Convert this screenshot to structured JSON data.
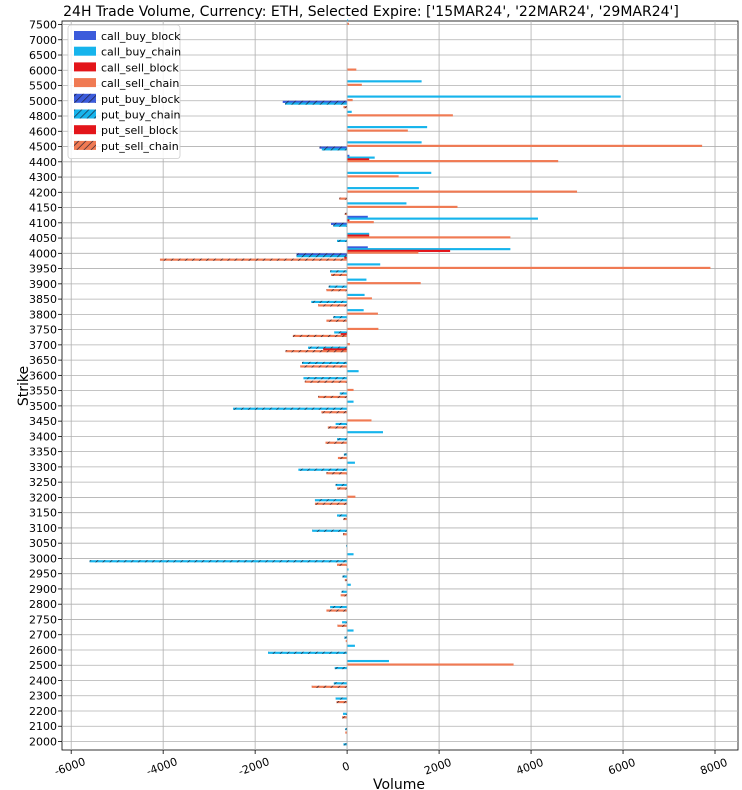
{
  "chart_data": {
    "type": "bar",
    "orientation": "horizontal",
    "title": "24H Trade Volume, Currency: ETH, Selected Expire: ['15MAR24', '22MAR24', '29MAR24']",
    "xlabel": "Volume",
    "ylabel": "Strike",
    "xlim": [
      -6200,
      8500
    ],
    "xticks": [
      -6000,
      -4000,
      -2000,
      0,
      2000,
      4000,
      6000,
      8000
    ],
    "grid": true,
    "legend_position": "top-left",
    "categories": [
      "7500",
      "7000",
      "6500",
      "6000",
      "5500",
      "5000",
      "4800",
      "4600",
      "4500",
      "4400",
      "4300",
      "4200",
      "4150",
      "4100",
      "4050",
      "4000",
      "3950",
      "3900",
      "3850",
      "3800",
      "3750",
      "3700",
      "3650",
      "3600",
      "3550",
      "3500",
      "3450",
      "3400",
      "3350",
      "3300",
      "3250",
      "3200",
      "3150",
      "3100",
      "3050",
      "3000",
      "2950",
      "2900",
      "2800",
      "2750",
      "2700",
      "2600",
      "2500",
      "2400",
      "2300",
      "2200",
      "2100",
      "2000"
    ],
    "series": [
      {
        "name": "call_buy_block",
        "color": "#3b5bdb",
        "hatch": false,
        "values": [
          0,
          0,
          0,
          0,
          0,
          0,
          0,
          0,
          0,
          50,
          0,
          0,
          0,
          450,
          0,
          450,
          0,
          0,
          0,
          0,
          0,
          0,
          0,
          0,
          0,
          0,
          0,
          0,
          0,
          0,
          0,
          0,
          0,
          0,
          0,
          0,
          0,
          0,
          0,
          0,
          0,
          0,
          0,
          0,
          0,
          0,
          0,
          0
        ]
      },
      {
        "name": "call_buy_chain",
        "color": "#16b4ec",
        "hatch": false,
        "values": [
          20,
          0,
          0,
          0,
          1620,
          5950,
          100,
          1740,
          1620,
          600,
          1830,
          1560,
          1290,
          4150,
          480,
          3550,
          720,
          420,
          380,
          360,
          0,
          0,
          0,
          250,
          0,
          140,
          0,
          780,
          0,
          170,
          0,
          0,
          0,
          0,
          0,
          140,
          30,
          80,
          0,
          0,
          140,
          170,
          910,
          0,
          0,
          0,
          0,
          0
        ]
      },
      {
        "name": "call_sell_block",
        "color": "#e3151a",
        "hatch": false,
        "values": [
          0,
          0,
          0,
          0,
          0,
          0,
          0,
          0,
          0,
          480,
          0,
          0,
          0,
          50,
          480,
          2240,
          0,
          0,
          0,
          0,
          0,
          0,
          0,
          0,
          0,
          0,
          0,
          0,
          0,
          0,
          0,
          0,
          0,
          0,
          0,
          0,
          0,
          0,
          0,
          0,
          0,
          0,
          0,
          0,
          0,
          0,
          0,
          0
        ]
      },
      {
        "name": "call_sell_chain",
        "color": "#f07a53",
        "hatch": false,
        "values": [
          40,
          0,
          0,
          200,
          320,
          120,
          2300,
          1320,
          7720,
          4590,
          1120,
          5000,
          2400,
          580,
          3550,
          1550,
          7900,
          1600,
          540,
          670,
          680,
          60,
          0,
          0,
          140,
          0,
          530,
          0,
          0,
          0,
          0,
          180,
          0,
          0,
          0,
          0,
          0,
          0,
          0,
          0,
          0,
          0,
          3620,
          0,
          0,
          0,
          0,
          0
        ]
      },
      {
        "name": "put_buy_block",
        "color": "#3b5bdb",
        "hatch": true,
        "values": [
          0,
          0,
          0,
          0,
          0,
          -1400,
          0,
          0,
          -600,
          0,
          0,
          0,
          0,
          -350,
          0,
          -1100,
          0,
          0,
          0,
          0,
          0,
          0,
          0,
          0,
          0,
          0,
          0,
          0,
          0,
          0,
          0,
          0,
          0,
          0,
          0,
          0,
          0,
          0,
          0,
          0,
          0,
          0,
          0,
          0,
          0,
          0,
          0,
          0
        ]
      },
      {
        "name": "put_buy_chain",
        "color": "#16b4ec",
        "hatch": true,
        "values": [
          0,
          0,
          0,
          0,
          0,
          -1350,
          0,
          0,
          -550,
          0,
          0,
          0,
          0,
          -300,
          -220,
          -1100,
          -370,
          -400,
          -780,
          -300,
          -280,
          -850,
          -980,
          -950,
          -160,
          -2480,
          -250,
          -220,
          -70,
          -1060,
          -250,
          -700,
          -220,
          -760,
          -20,
          -5600,
          -100,
          -120,
          -370,
          -110,
          -60,
          -1720,
          -270,
          -290,
          -250,
          -90,
          -40,
          -80
        ]
      },
      {
        "name": "put_sell_block",
        "color": "#e3151a",
        "hatch": false,
        "values": [
          0,
          0,
          0,
          0,
          0,
          0,
          0,
          0,
          0,
          0,
          0,
          0,
          0,
          0,
          0,
          -60,
          0,
          0,
          0,
          0,
          -140,
          -520,
          0,
          0,
          0,
          0,
          0,
          0,
          0,
          0,
          0,
          0,
          0,
          0,
          0,
          0,
          0,
          0,
          0,
          0,
          0,
          0,
          0,
          0,
          0,
          0,
          0,
          0
        ]
      },
      {
        "name": "put_sell_chain",
        "color": "#f07a53",
        "hatch": true,
        "values": [
          0,
          0,
          0,
          0,
          0,
          -80,
          0,
          0,
          0,
          0,
          0,
          -170,
          -50,
          0,
          0,
          -4070,
          -350,
          -450,
          -630,
          -450,
          -1180,
          -1340,
          -1020,
          -920,
          -630,
          -560,
          -420,
          -470,
          -200,
          -450,
          -220,
          -700,
          -80,
          -90,
          0,
          -220,
          -50,
          -140,
          -450,
          -210,
          -30,
          0,
          0,
          -770,
          -230,
          -110,
          -40,
          0
        ]
      }
    ]
  }
}
